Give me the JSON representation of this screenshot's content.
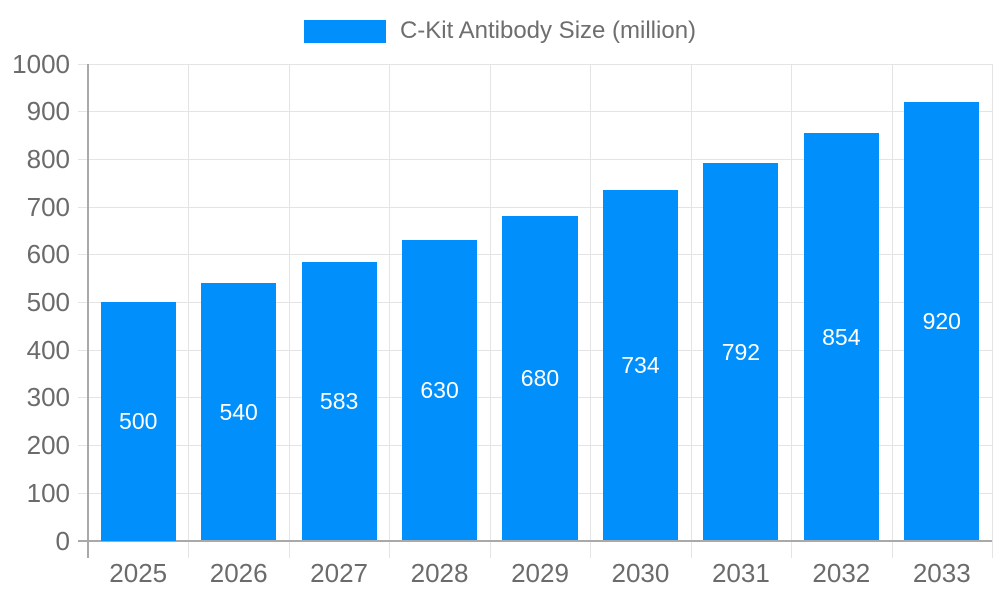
{
  "legend": {
    "items": [
      {
        "label": "C-Kit Antibody Size (million)",
        "color": "#008FFB"
      }
    ]
  },
  "chart_data": {
    "type": "bar",
    "title": "C-Kit Antibody Size (million)",
    "categories": [
      "2025",
      "2026",
      "2027",
      "2028",
      "2029",
      "2030",
      "2031",
      "2032",
      "2033"
    ],
    "values": [
      500,
      540,
      583,
      630,
      680,
      734,
      792,
      854,
      920
    ],
    "series": [
      {
        "name": "C-Kit Antibody Size (million)",
        "values": [
          500,
          540,
          583,
          630,
          680,
          734,
          792,
          854,
          920
        ]
      }
    ],
    "xlabel": "",
    "ylabel": "",
    "ylim": [
      0,
      1000
    ],
    "ytick_step": 100,
    "yticks": [
      0,
      100,
      200,
      300,
      400,
      500,
      600,
      700,
      800,
      900,
      1000
    ],
    "grid": "horizontal-and-vertical",
    "legend_position": "top-center",
    "value_labels": "inside-bar-centered",
    "colors": {
      "bar": "#008FFB",
      "value_label": "#FFFFFF",
      "axis_text": "#6B6B6B",
      "gridline": "#E4E4E4",
      "axis_line": "#A9A9A9",
      "background": "#FFFFFF"
    }
  }
}
